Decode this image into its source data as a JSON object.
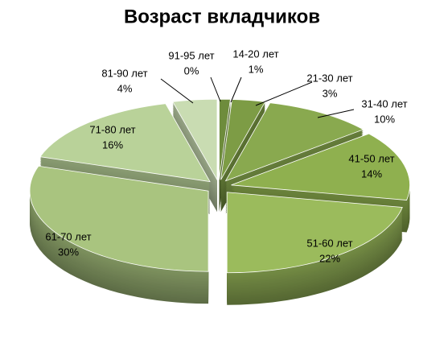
{
  "chart_data": {
    "type": "pie3d",
    "title": "Возраст вкладчиков",
    "categories": [
      "14-20 лет",
      "21-30 лет",
      "31-40 лет",
      "41-50 лет",
      "51-60 лет",
      "61-70 лет",
      "71-80 лет",
      "81-90 лет",
      "91-95 лет"
    ],
    "values": [
      1,
      3,
      10,
      14,
      22,
      30,
      16,
      4,
      0
    ],
    "value_labels": [
      "1%",
      "3%",
      "10%",
      "14%",
      "22%",
      "30%",
      "16%",
      "4%",
      "0%"
    ],
    "colors": [
      "#6e8c3c",
      "#7d9c45",
      "#89a94f",
      "#8fb04f",
      "#9bbb5c",
      "#a9c47f",
      "#b9d299",
      "#c9dcb2",
      "#d9e7c9"
    ]
  }
}
